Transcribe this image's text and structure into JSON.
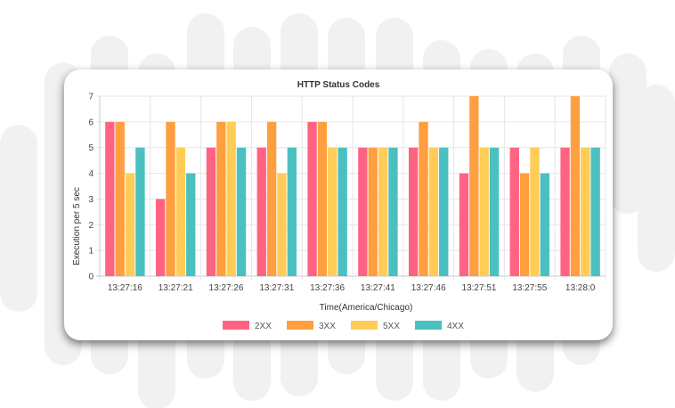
{
  "chart_data": {
    "type": "bar",
    "title": "HTTP Status Codes",
    "xlabel": "Time(America/Chicago)",
    "ylabel": "Execution per 5 sec",
    "ylim": [
      0,
      7
    ],
    "yticks": [
      0,
      1,
      2,
      3,
      4,
      5,
      6,
      7
    ],
    "grid": true,
    "legend_position": "bottom",
    "categories": [
      "13:27:16",
      "13:27:21",
      "13:27:26",
      "13:27:31",
      "13:27:36",
      "13:27:41",
      "13:27:46",
      "13:27:51",
      "13:27:55",
      "13:28:0"
    ],
    "series": [
      {
        "name": "2XX",
        "color": "#ff6384",
        "values": [
          6,
          3,
          5,
          5,
          6,
          5,
          5,
          4,
          5,
          5
        ]
      },
      {
        "name": "3XX",
        "color": "#ff9f40",
        "values": [
          6,
          6,
          6,
          6,
          6,
          5,
          6,
          7,
          4,
          7
        ]
      },
      {
        "name": "5XX",
        "color": "#ffcd56",
        "values": [
          4,
          5,
          6,
          4,
          5,
          5,
          5,
          5,
          5,
          5
        ]
      },
      {
        "name": "4XX",
        "color": "#4bc0c0",
        "values": [
          5,
          4,
          5,
          5,
          5,
          5,
          5,
          5,
          4,
          5
        ]
      }
    ]
  }
}
